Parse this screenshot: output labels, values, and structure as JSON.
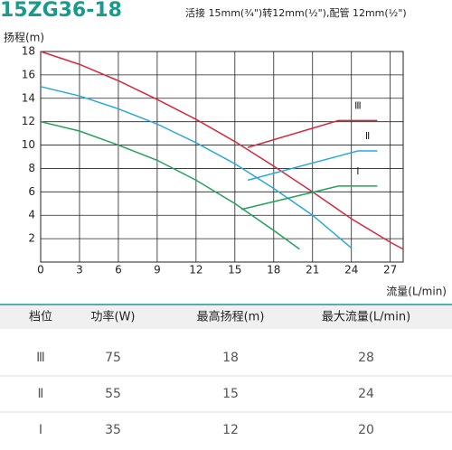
{
  "chart_data": {
    "type": "line",
    "title": "15ZG36-18",
    "subtitle": "活接 15mm(¾\")转12mm(½\"),配管 12mm(½\")",
    "y_label": "扬程(m)",
    "x_label": "流量(L/min)",
    "xlim": [
      0,
      28
    ],
    "ylim": [
      0,
      18
    ],
    "xticks": [
      0,
      3,
      6,
      9,
      12,
      15,
      18,
      21,
      24,
      27
    ],
    "yticks": [
      2,
      4,
      6,
      8,
      10,
      12,
      14,
      16,
      18
    ],
    "grid": true,
    "series": [
      {
        "name": "Ⅲ",
        "color": "#d42a3c",
        "x": [
          0,
          3,
          6,
          9,
          12,
          15,
          18,
          21,
          24,
          27,
          28
        ],
        "values": [
          18,
          16.9,
          15.5,
          13.9,
          12.2,
          10.3,
          8.2,
          6,
          3.7,
          1.7,
          1.1
        ],
        "eff_x": [
          16,
          23,
          26
        ],
        "eff_values": [
          9.8,
          12.1,
          12.1
        ]
      },
      {
        "name": "Ⅱ",
        "color": "#2aa8dc",
        "x": [
          0,
          3,
          6,
          9,
          12,
          15,
          18,
          21,
          24
        ],
        "values": [
          15,
          14.2,
          13.1,
          11.8,
          10.2,
          8.4,
          6.3,
          4,
          1.2
        ],
        "eff_x": [
          16,
          24.5,
          26
        ],
        "eff_values": [
          7,
          9.5,
          9.5
        ]
      },
      {
        "name": "Ⅰ",
        "color": "#23a05a",
        "x": [
          0,
          3,
          6,
          9,
          12,
          15,
          18,
          20
        ],
        "values": [
          12,
          11.2,
          10,
          8.7,
          7,
          5,
          2.7,
          1.1
        ],
        "eff_x": [
          15.5,
          23,
          26
        ],
        "eff_values": [
          4.5,
          6.5,
          6.5
        ]
      }
    ]
  },
  "table": {
    "header": [
      "档位",
      "功率(W)",
      "最高扬程(m)",
      "最大流量(L/min)"
    ],
    "rows": [
      [
        "Ⅲ",
        "75",
        "18",
        "28"
      ],
      [
        "Ⅱ",
        "55",
        "15",
        "24"
      ],
      [
        "Ⅰ",
        "35",
        "12",
        "20"
      ]
    ]
  }
}
